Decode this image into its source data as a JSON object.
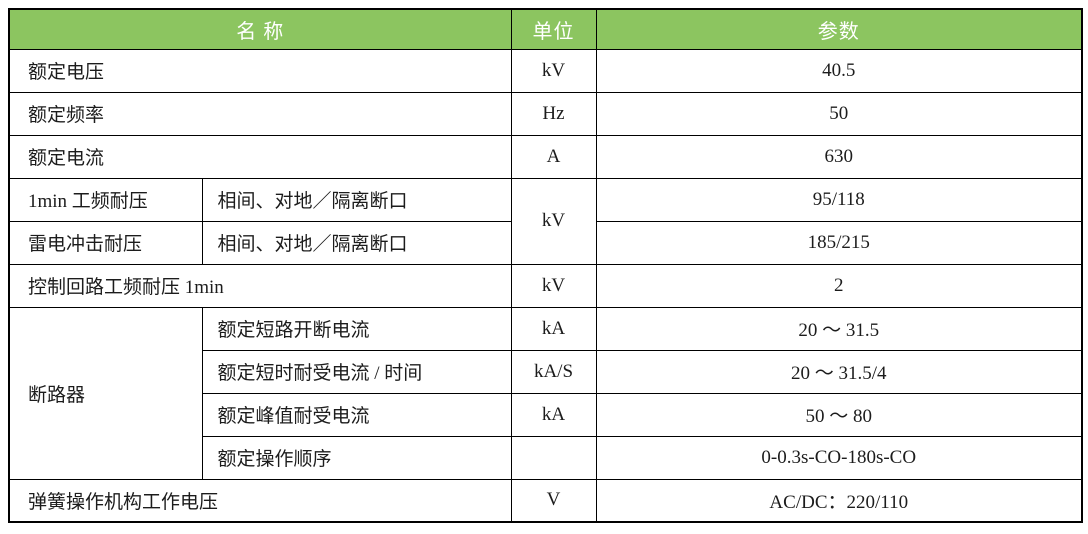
{
  "colors": {
    "header_bg": "#8cc560",
    "header_text": "#ffffff",
    "border": "#000000",
    "text": "#1c1c1c",
    "page_bg": "#ffffff"
  },
  "table": {
    "header": [
      {
        "key": "name",
        "t": "名  称",
        "cs": 2
      },
      {
        "key": "unit",
        "t": "单位"
      },
      {
        "key": "param",
        "t": "参数"
      }
    ],
    "rows": [
      {
        "cells": [
          {
            "t": "额定电压",
            "cs": 2,
            "al": "left"
          },
          {
            "t": "kV"
          },
          {
            "t": "40.5"
          }
        ]
      },
      {
        "cells": [
          {
            "t": "额定频率",
            "cs": 2,
            "al": "left"
          },
          {
            "t": "Hz"
          },
          {
            "t": "50"
          }
        ]
      },
      {
        "cells": [
          {
            "t": "额定电流",
            "cs": 2,
            "al": "left"
          },
          {
            "t": "A"
          },
          {
            "t": "630"
          }
        ]
      },
      {
        "cells": [
          {
            "t": "1min 工频耐压",
            "al": "left"
          },
          {
            "t": "相间、对地／隔离断口",
            "al": "left",
            "sub": true
          },
          {
            "t": "kV",
            "rs": 2
          },
          {
            "t": "95/118"
          }
        ]
      },
      {
        "cells": [
          {
            "t": "雷电冲击耐压",
            "al": "left"
          },
          {
            "t": "相间、对地／隔离断口",
            "al": "left",
            "sub": true
          },
          {
            "t": "185/215"
          }
        ]
      },
      {
        "cells": [
          {
            "t": "控制回路工频耐压 1min",
            "cs": 2,
            "al": "left"
          },
          {
            "t": "kV"
          },
          {
            "t": "2"
          }
        ]
      },
      {
        "cells": [
          {
            "t": "断路器",
            "rs": 4,
            "al": "left"
          },
          {
            "t": "额定短路开断电流",
            "al": "left",
            "sub": true
          },
          {
            "t": "kA"
          },
          {
            "t": "20 ～ 31.5"
          }
        ]
      },
      {
        "cells": [
          {
            "t": "额定短时耐受电流 / 时间",
            "al": "left",
            "sub": true
          },
          {
            "t": "kA/S"
          },
          {
            "t": "20 ～ 31.5/4"
          }
        ]
      },
      {
        "cells": [
          {
            "t": "额定峰值耐受电流",
            "al": "left",
            "sub": true
          },
          {
            "t": "kA"
          },
          {
            "t": "50 ～ 80"
          }
        ]
      },
      {
        "cells": [
          {
            "t": "额定操作顺序",
            "al": "left",
            "sub": true
          },
          {
            "t": ""
          },
          {
            "t": "0-0.3s-CO-180s-CO"
          }
        ]
      },
      {
        "cells": [
          {
            "t": "弹簧操作机构工作电压",
            "cs": 2,
            "al": "left"
          },
          {
            "t": "V"
          },
          {
            "t": "AC/DC：220/110"
          }
        ]
      }
    ]
  }
}
